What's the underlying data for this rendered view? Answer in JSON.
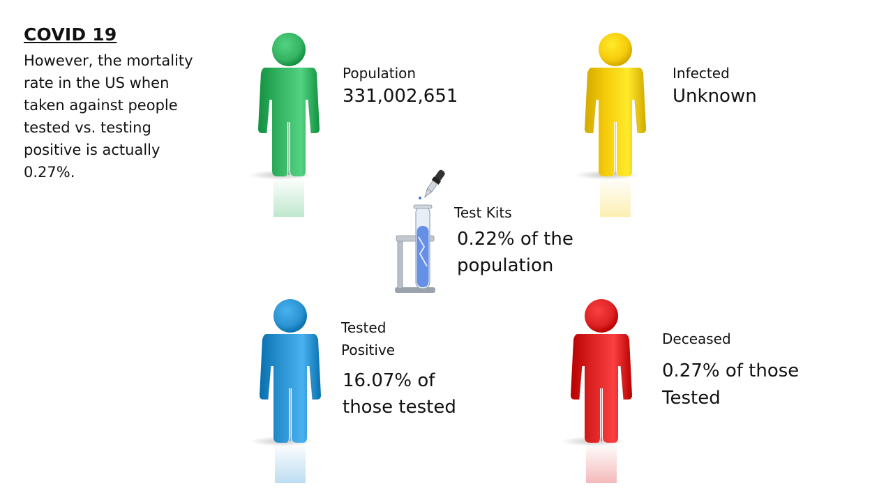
{
  "slide": {
    "title": "COVID 19",
    "intro": "However, the mortality rate in the US when taken against people tested vs. testing positive is actually 0.27%."
  },
  "figures": {
    "population": {
      "color": "#35b463",
      "label": "Population",
      "value": "331,002,651"
    },
    "infected": {
      "color": "#f6cc0c",
      "label": "Infected",
      "value": "Unknown"
    },
    "tested_positive": {
      "color": "#2b93d1",
      "label_line1": "Tested",
      "label_line2": "Positive",
      "value_line1": "16.07% of",
      "value_line2": "those tested"
    },
    "deceased": {
      "color": "#dc2222",
      "label": "Deceased",
      "value_line1": "0.27% of those",
      "value_line2": "Tested"
    }
  },
  "test_kits": {
    "label": "Test Kits",
    "value_line1": "0.22% of the",
    "value_line2": "population",
    "liquid_color": "#3b6fe0"
  }
}
